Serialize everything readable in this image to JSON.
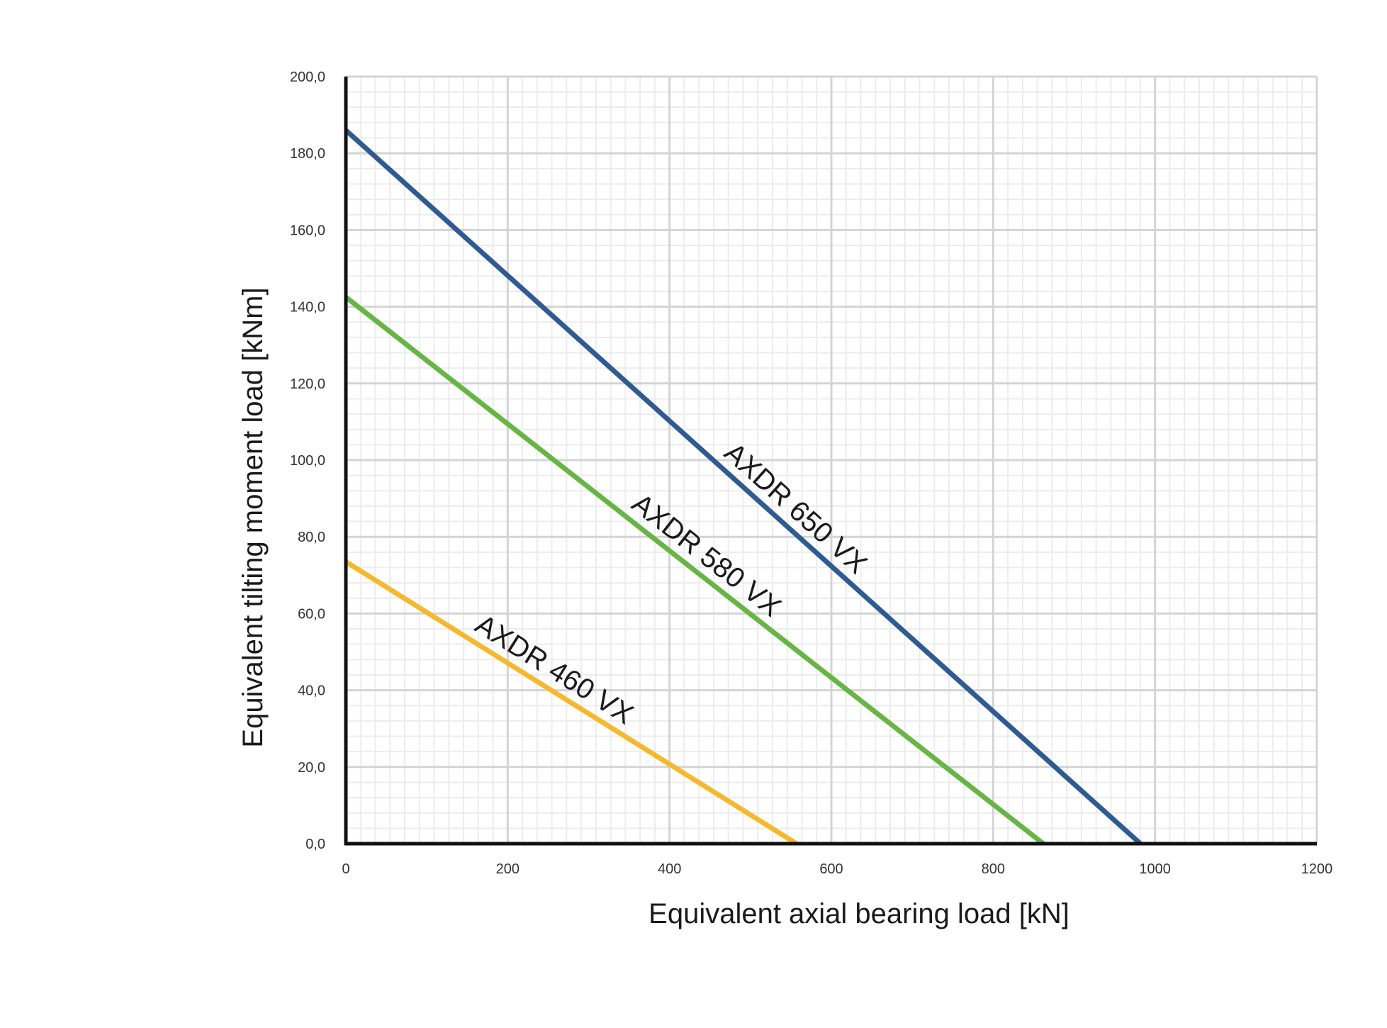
{
  "chart_data": {
    "type": "line",
    "title": "",
    "xlabel": "Equivalent axial bearing load [kN]",
    "ylabel": "Equivalent tilting moment load [kNm]",
    "xlim": [
      0,
      1200
    ],
    "ylim": [
      0,
      200
    ],
    "x_ticks": [
      "0",
      "200",
      "400",
      "600",
      "800",
      "1000",
      "1200"
    ],
    "y_ticks": [
      "0,0",
      "20,0",
      "40,0",
      "60,0",
      "80,0",
      "100,0",
      "120,0",
      "140,0",
      "160,0",
      "180,0",
      "200,0"
    ],
    "grid": true,
    "legend": "labels placed along lines",
    "series": [
      {
        "name": "AXDR 650 VX",
        "color": "#2f5b92",
        "x": [
          0,
          982
        ],
        "y": [
          186,
          0
        ]
      },
      {
        "name": "AXDR 580 VX",
        "color": "#66b545",
        "x": [
          0,
          862
        ],
        "y": [
          142.5,
          0
        ]
      },
      {
        "name": "AXDR 460 VX",
        "color": "#f5b82e",
        "x": [
          0,
          557
        ],
        "y": [
          73.5,
          0
        ]
      }
    ]
  }
}
